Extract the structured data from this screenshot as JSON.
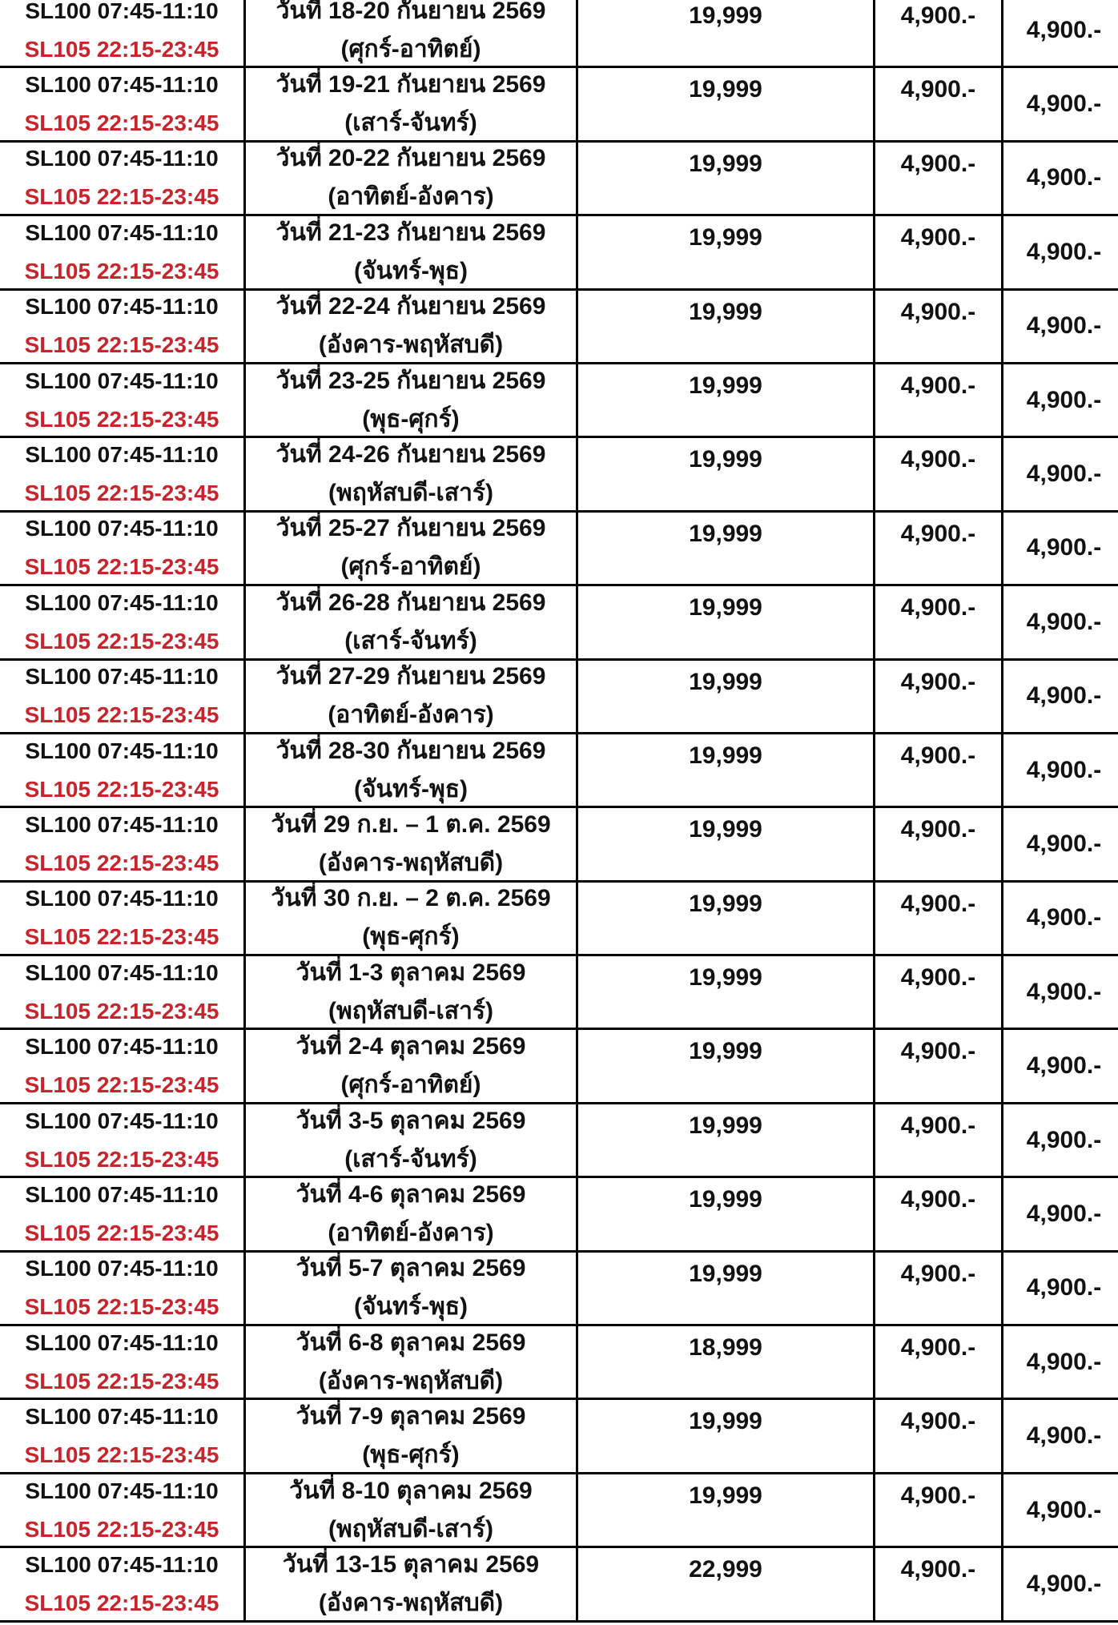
{
  "colors": {
    "background": "#ffffff",
    "text_black": "#121212",
    "flight_return_red": "#c9242b",
    "border": "#000000"
  },
  "table": {
    "rows": [
      {
        "flight_outbound": "SL100 07:45-11:10",
        "flight_return": "SL105 22:15-23:45",
        "date": "วันที่ 18-20 กันยายน 2569",
        "weekday": "(ศุกร์-อาทิตย์)",
        "price": "19,999",
        "price2": "4,900.-",
        "price3": "4,900.-"
      },
      {
        "flight_outbound": "SL100 07:45-11:10",
        "flight_return": "SL105 22:15-23:45",
        "date": "วันที่ 19-21 กันยายน 2569",
        "weekday": "(เสาร์-จันทร์)",
        "price": "19,999",
        "price2": "4,900.-",
        "price3": "4,900.-"
      },
      {
        "flight_outbound": "SL100 07:45-11:10",
        "flight_return": "SL105 22:15-23:45",
        "date": "วันที่ 20-22 กันยายน 2569",
        "weekday": "(อาทิตย์-อังคาร)",
        "price": "19,999",
        "price2": "4,900.-",
        "price3": "4,900.-"
      },
      {
        "flight_outbound": "SL100 07:45-11:10",
        "flight_return": "SL105 22:15-23:45",
        "date": "วันที่ 21-23 กันยายน 2569",
        "weekday": "(จันทร์-พุธ)",
        "price": "19,999",
        "price2": "4,900.-",
        "price3": "4,900.-"
      },
      {
        "flight_outbound": "SL100 07:45-11:10",
        "flight_return": "SL105 22:15-23:45",
        "date": "วันที่ 22-24 กันยายน 2569",
        "weekday": "(อังคาร-พฤหัสบดี)",
        "price": "19,999",
        "price2": "4,900.-",
        "price3": "4,900.-"
      },
      {
        "flight_outbound": "SL100 07:45-11:10",
        "flight_return": "SL105 22:15-23:45",
        "date": "วันที่ 23-25 กันยายน 2569",
        "weekday": "(พุธ-ศุกร์)",
        "price": "19,999",
        "price2": "4,900.-",
        "price3": "4,900.-"
      },
      {
        "flight_outbound": "SL100 07:45-11:10",
        "flight_return": "SL105 22:15-23:45",
        "date": "วันที่ 24-26 กันยายน 2569",
        "weekday": "(พฤหัสบดี-เสาร์)",
        "price": "19,999",
        "price2": "4,900.-",
        "price3": "4,900.-"
      },
      {
        "flight_outbound": "SL100 07:45-11:10",
        "flight_return": "SL105 22:15-23:45",
        "date": "วันที่ 25-27 กันยายน 2569",
        "weekday": "(ศุกร์-อาทิตย์)",
        "price": "19,999",
        "price2": "4,900.-",
        "price3": "4,900.-"
      },
      {
        "flight_outbound": "SL100 07:45-11:10",
        "flight_return": "SL105 22:15-23:45",
        "date": "วันที่ 26-28 กันยายน 2569",
        "weekday": "(เสาร์-จันทร์)",
        "price": "19,999",
        "price2": "4,900.-",
        "price3": "4,900.-"
      },
      {
        "flight_outbound": "SL100 07:45-11:10",
        "flight_return": "SL105 22:15-23:45",
        "date": "วันที่ 27-29 กันยายน 2569",
        "weekday": "(อาทิตย์-อังคาร)",
        "price": "19,999",
        "price2": "4,900.-",
        "price3": "4,900.-"
      },
      {
        "flight_outbound": "SL100 07:45-11:10",
        "flight_return": "SL105 22:15-23:45",
        "date": "วันที่ 28-30 กันยายน 2569",
        "weekday": "(จันทร์-พุธ)",
        "price": "19,999",
        "price2": "4,900.-",
        "price3": "4,900.-"
      },
      {
        "flight_outbound": "SL100 07:45-11:10",
        "flight_return": "SL105 22:15-23:45",
        "date": "วันที่ 29 ก.ย. – 1 ต.ค. 2569",
        "weekday": "(อังคาร-พฤหัสบดี)",
        "price": "19,999",
        "price2": "4,900.-",
        "price3": "4,900.-"
      },
      {
        "flight_outbound": "SL100 07:45-11:10",
        "flight_return": "SL105 22:15-23:45",
        "date": "วันที่ 30 ก.ย. – 2 ต.ค. 2569",
        "weekday": "(พุธ-ศุกร์)",
        "price": "19,999",
        "price2": "4,900.-",
        "price3": "4,900.-"
      },
      {
        "flight_outbound": "SL100 07:45-11:10",
        "flight_return": "SL105 22:15-23:45",
        "date": "วันที่ 1-3 ตุลาคม 2569",
        "weekday": "(พฤหัสบดี-เสาร์)",
        "price": "19,999",
        "price2": "4,900.-",
        "price3": "4,900.-"
      },
      {
        "flight_outbound": "SL100 07:45-11:10",
        "flight_return": "SL105 22:15-23:45",
        "date": "วันที่ 2-4 ตุลาคม 2569",
        "weekday": "(ศุกร์-อาทิตย์)",
        "price": "19,999",
        "price2": "4,900.-",
        "price3": "4,900.-"
      },
      {
        "flight_outbound": "SL100 07:45-11:10",
        "flight_return": "SL105 22:15-23:45",
        "date": "วันที่ 3-5 ตุลาคม 2569",
        "weekday": "(เสาร์-จันทร์)",
        "price": "19,999",
        "price2": "4,900.-",
        "price3": "4,900.-"
      },
      {
        "flight_outbound": "SL100 07:45-11:10",
        "flight_return": "SL105 22:15-23:45",
        "date": "วันที่ 4-6 ตุลาคม 2569",
        "weekday": "(อาทิตย์-อังคาร)",
        "price": "19,999",
        "price2": "4,900.-",
        "price3": "4,900.-"
      },
      {
        "flight_outbound": "SL100 07:45-11:10",
        "flight_return": "SL105 22:15-23:45",
        "date": "วันที่ 5-7 ตุลาคม 2569",
        "weekday": "(จันทร์-พุธ)",
        "price": "19,999",
        "price2": "4,900.-",
        "price3": "4,900.-"
      },
      {
        "flight_outbound": "SL100 07:45-11:10",
        "flight_return": "SL105 22:15-23:45",
        "date": "วันที่ 6-8 ตุลาคม 2569",
        "weekday": "(อังคาร-พฤหัสบดี)",
        "price": "18,999",
        "price2": "4,900.-",
        "price3": "4,900.-"
      },
      {
        "flight_outbound": "SL100 07:45-11:10",
        "flight_return": "SL105 22:15-23:45",
        "date": "วันที่ 7-9 ตุลาคม 2569",
        "weekday": "(พุธ-ศุกร์)",
        "price": "19,999",
        "price2": "4,900.-",
        "price3": "4,900.-"
      },
      {
        "flight_outbound": "SL100 07:45-11:10",
        "flight_return": "SL105 22:15-23:45",
        "date": "วันที่ 8-10 ตุลาคม 2569",
        "weekday": "(พฤหัสบดี-เสาร์)",
        "price": "19,999",
        "price2": "4,900.-",
        "price3": "4,900.-"
      },
      {
        "flight_outbound": "SL100 07:45-11:10",
        "flight_return": "SL105 22:15-23:45",
        "date": "วันที่ 13-15 ตุลาคม 2569",
        "weekday": "(อังคาร-พฤหัสบดี)",
        "price": "22,999",
        "price2": "4,900.-",
        "price3": "4,900.-"
      }
    ]
  }
}
